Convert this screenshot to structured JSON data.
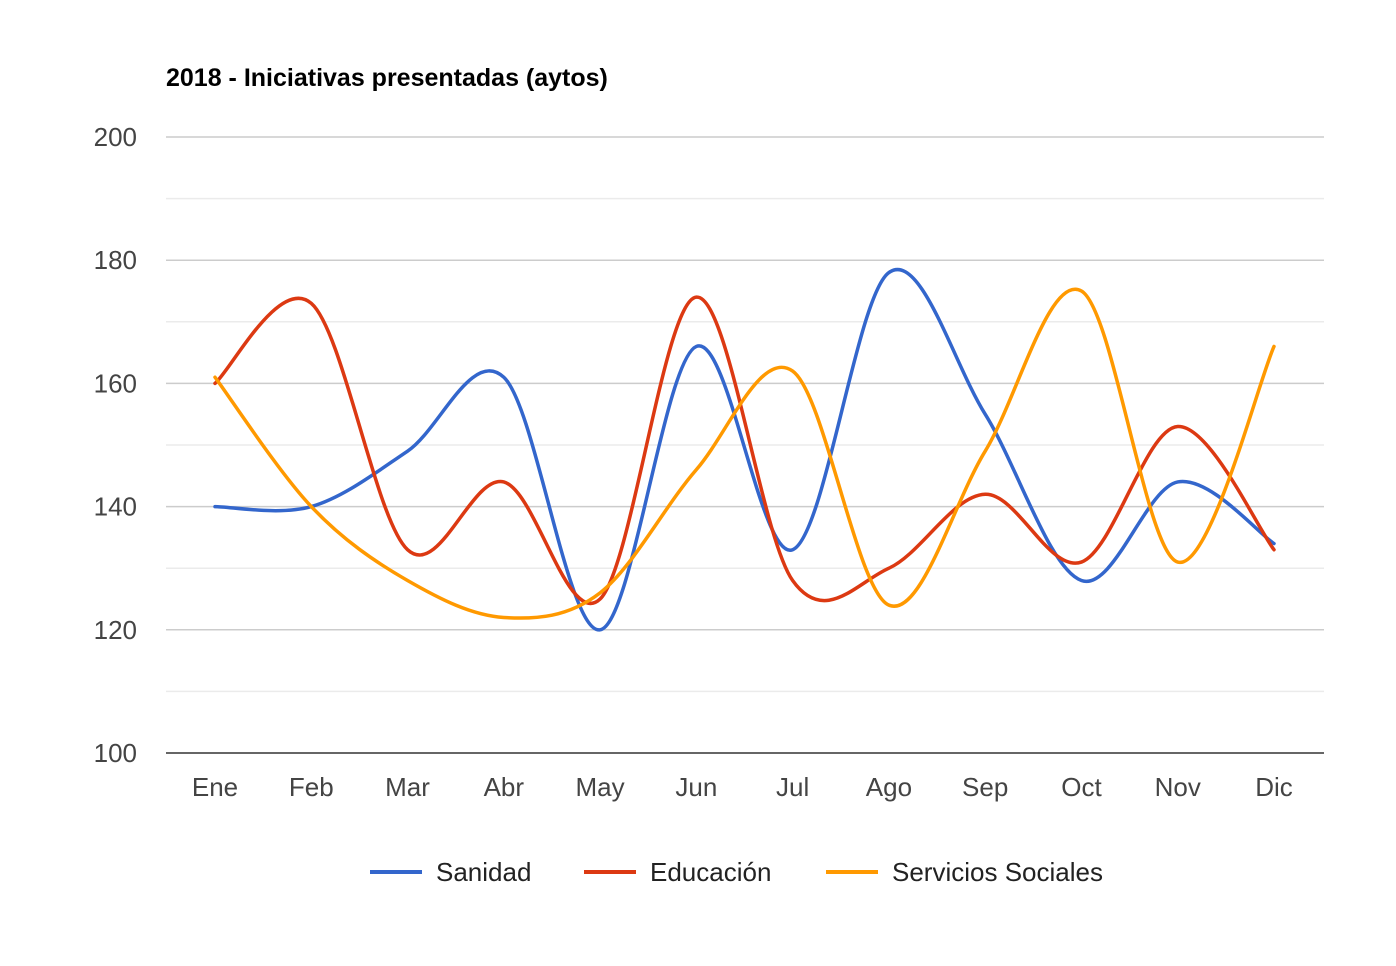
{
  "chart_data": {
    "type": "line",
    "title": "2018 - Iniciativas presentadas (aytos)",
    "xlabel": "",
    "ylabel": "",
    "categories": [
      "Ene",
      "Feb",
      "Mar",
      "Abr",
      "May",
      "Jun",
      "Jul",
      "Ago",
      "Sep",
      "Oct",
      "Nov",
      "Dic"
    ],
    "ylim": [
      100,
      200
    ],
    "yticks": [
      100,
      120,
      140,
      160,
      180,
      200
    ],
    "minor_grid_step": 10,
    "grid": true,
    "smooth": true,
    "legend_position": "bottom",
    "series": [
      {
        "name": "Sanidad",
        "color": "#3366cc",
        "values": [
          140,
          140,
          149,
          161,
          120,
          166,
          133,
          178,
          155,
          128,
          144,
          134
        ]
      },
      {
        "name": "Educación",
        "color": "#dc3912",
        "values": [
          160,
          173,
          133,
          144,
          125,
          174,
          128,
          130,
          142,
          131,
          153,
          133
        ]
      },
      {
        "name": "Servicios Sociales",
        "color": "#ff9900",
        "values": [
          161,
          140,
          128,
          122,
          126,
          146,
          162,
          124,
          149,
          175,
          131,
          166
        ]
      }
    ]
  }
}
